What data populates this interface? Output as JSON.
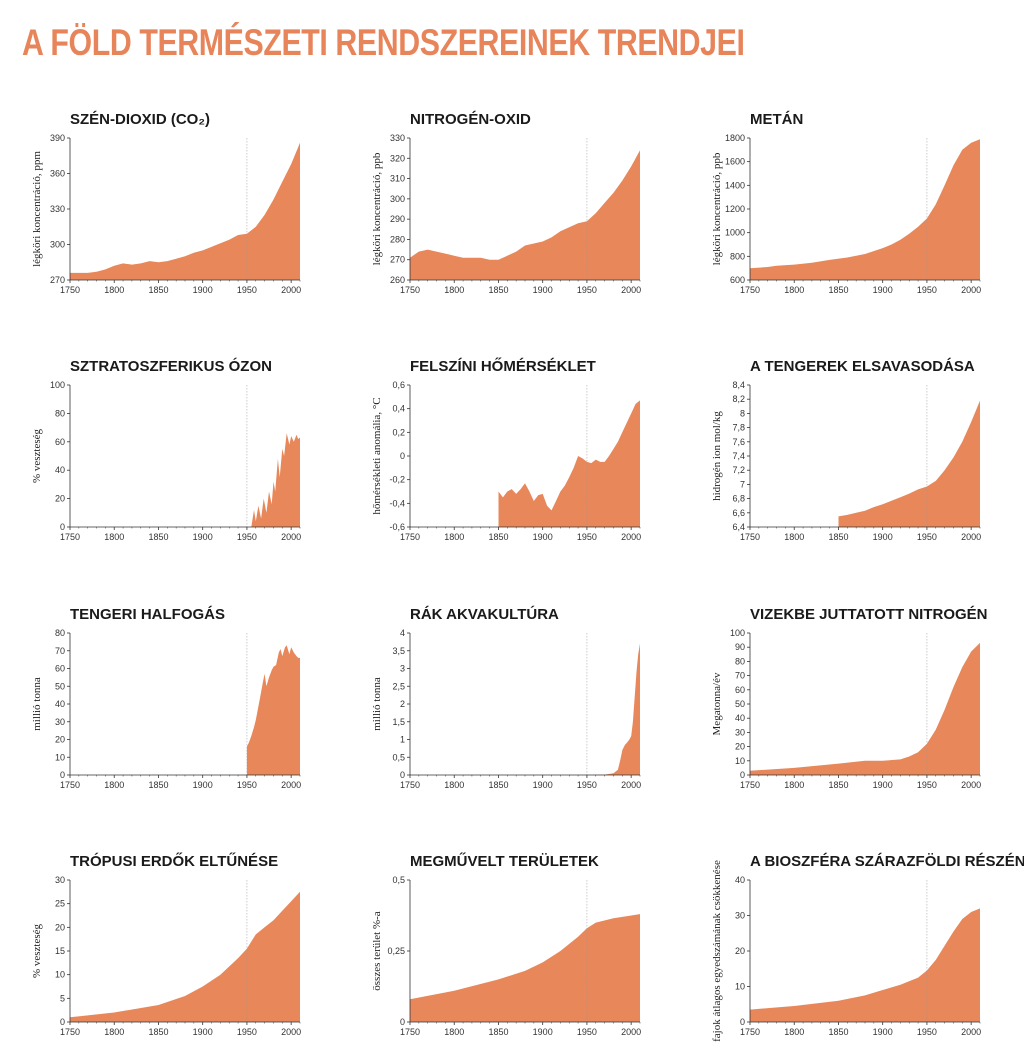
{
  "page": {
    "title": "A FÖLD TERMÉSZETI RENDSZEREINEK TRENDJEI"
  },
  "colors": {
    "accent": "#e8845a",
    "fill": "#e8875a",
    "axis": "#333333"
  },
  "chart_data": [
    {
      "id": "co2",
      "type": "area",
      "title": "SZÉN-DIOXID (CO₂)",
      "ylabel": "légköri koncentráció, ppm",
      "xlim": [
        1750,
        2010
      ],
      "ylim": [
        270,
        390
      ],
      "yticks": [
        270,
        300,
        330,
        360,
        390
      ],
      "ytick_labels": [
        "270",
        "300",
        "330",
        "360",
        "390"
      ],
      "marker_year": 1950,
      "x": [
        1750,
        1770,
        1780,
        1790,
        1800,
        1810,
        1820,
        1830,
        1840,
        1850,
        1860,
        1870,
        1880,
        1890,
        1900,
        1910,
        1920,
        1930,
        1940,
        1950,
        1960,
        1970,
        1980,
        1990,
        2000,
        2010
      ],
      "y": [
        276,
        276,
        277,
        279,
        282,
        284,
        283,
        284,
        286,
        285,
        286,
        288,
        290,
        293,
        295,
        298,
        301,
        304,
        308,
        309,
        315,
        325,
        338,
        353,
        368,
        386
      ]
    },
    {
      "id": "n2o",
      "type": "area",
      "title": "NITROGÉN-OXID",
      "ylabel": "légköri koncentráció, ppb",
      "xlim": [
        1750,
        2010
      ],
      "ylim": [
        260,
        330
      ],
      "yticks": [
        260,
        270,
        280,
        290,
        300,
        310,
        320,
        330
      ],
      "ytick_labels": [
        "260",
        "270",
        "280",
        "290",
        "300",
        "310",
        "320",
        "330"
      ],
      "marker_year": 1950,
      "x": [
        1750,
        1760,
        1770,
        1780,
        1790,
        1800,
        1810,
        1820,
        1830,
        1840,
        1850,
        1860,
        1870,
        1880,
        1890,
        1900,
        1910,
        1920,
        1930,
        1940,
        1950,
        1960,
        1970,
        1980,
        1990,
        2000,
        2010
      ],
      "y": [
        271,
        274,
        275,
        274,
        273,
        272,
        271,
        271,
        271,
        270,
        270,
        272,
        274,
        277,
        278,
        279,
        281,
        284,
        286,
        288,
        289,
        293,
        298,
        303,
        309,
        316,
        324
      ]
    },
    {
      "id": "ch4",
      "type": "area",
      "title": "METÁN",
      "ylabel": "légköri koncentráció, ppb",
      "xlim": [
        1750,
        2010
      ],
      "ylim": [
        600,
        1800
      ],
      "yticks": [
        600,
        800,
        1000,
        1200,
        1400,
        1600,
        1800
      ],
      "ytick_labels": [
        "600",
        "800",
        "1000",
        "1200",
        "1400",
        "1600",
        "1800"
      ],
      "marker_year": 1950,
      "x": [
        1750,
        1770,
        1780,
        1800,
        1820,
        1840,
        1860,
        1880,
        1900,
        1910,
        1920,
        1930,
        1940,
        1950,
        1960,
        1970,
        1980,
        1990,
        2000,
        2010
      ],
      "y": [
        700,
        710,
        720,
        730,
        745,
        770,
        790,
        820,
        870,
        900,
        940,
        990,
        1050,
        1120,
        1240,
        1400,
        1570,
        1700,
        1760,
        1790
      ]
    },
    {
      "id": "ozone",
      "type": "area",
      "title": "SZTRATOSZFERIKUS ÓZON",
      "ylabel": "% veszteség",
      "xlim": [
        1750,
        2010
      ],
      "ylim": [
        0,
        100
      ],
      "yticks": [
        0,
        20,
        40,
        60,
        80,
        100
      ],
      "ytick_labels": [
        "0",
        "20",
        "40",
        "60",
        "80",
        "100"
      ],
      "marker_year": 1950,
      "x": [
        1955,
        1958,
        1960,
        1963,
        1966,
        1969,
        1972,
        1975,
        1978,
        1980,
        1982,
        1985,
        1987,
        1990,
        1992,
        1995,
        1998,
        2000,
        2003,
        2006,
        2008,
        2010
      ],
      "y": [
        0,
        12,
        4,
        15,
        6,
        20,
        10,
        25,
        16,
        32,
        25,
        48,
        35,
        55,
        50,
        66,
        58,
        64,
        60,
        65,
        62,
        63
      ]
    },
    {
      "id": "temp",
      "type": "area",
      "title": "FELSZÍNI HŐMÉRSÉKLET",
      "ylabel": "hőmérsékleti anomália, °C",
      "xlim": [
        1750,
        2010
      ],
      "ylim": [
        -0.6,
        0.6
      ],
      "yticks": [
        -0.6,
        -0.4,
        -0.2,
        0,
        0.2,
        0.4,
        0.6
      ],
      "ytick_labels": [
        "-0,6",
        "-0,4",
        "-0,2",
        "0",
        "0,2",
        "0,4",
        "0,6"
      ],
      "marker_year": 1950,
      "x": [
        1850,
        1855,
        1860,
        1865,
        1870,
        1875,
        1880,
        1885,
        1890,
        1895,
        1900,
        1905,
        1910,
        1915,
        1920,
        1925,
        1930,
        1935,
        1940,
        1945,
        1950,
        1955,
        1960,
        1965,
        1970,
        1975,
        1980,
        1985,
        1990,
        1995,
        2000,
        2005,
        2010
      ],
      "y": [
        -0.3,
        -0.35,
        -0.3,
        -0.28,
        -0.32,
        -0.28,
        -0.23,
        -0.3,
        -0.38,
        -0.33,
        -0.32,
        -0.42,
        -0.46,
        -0.38,
        -0.3,
        -0.25,
        -0.18,
        -0.1,
        0.0,
        -0.02,
        -0.05,
        -0.06,
        -0.03,
        -0.05,
        -0.05,
        0.0,
        0.06,
        0.12,
        0.2,
        0.28,
        0.36,
        0.44,
        0.47
      ]
    },
    {
      "id": "ocean",
      "type": "area",
      "title": "A TENGEREK ELSAVASODÁSA",
      "ylabel": "hidrogén ion mol/kg",
      "xlim": [
        1750,
        2010
      ],
      "ylim": [
        6.4,
        8.4
      ],
      "yticks": [
        6.4,
        6.6,
        6.8,
        7,
        7.2,
        7.4,
        7.6,
        7.8,
        8,
        8.2,
        8.4
      ],
      "ytick_labels": [
        "6,4",
        "6,6",
        "6,8",
        "7",
        "7,2",
        "7,4",
        "7,6",
        "7,8",
        "8",
        "8,2",
        "8,4"
      ],
      "marker_year": 1950,
      "x": [
        1850,
        1860,
        1870,
        1880,
        1890,
        1900,
        1910,
        1920,
        1930,
        1940,
        1950,
        1960,
        1970,
        1980,
        1990,
        2000,
        2010
      ],
      "y": [
        6.55,
        6.57,
        6.6,
        6.63,
        6.68,
        6.72,
        6.77,
        6.82,
        6.87,
        6.93,
        6.97,
        7.05,
        7.2,
        7.38,
        7.6,
        7.88,
        8.18
      ]
    },
    {
      "id": "fish",
      "type": "area",
      "title": "TENGERI HALFOGÁS",
      "ylabel": "millió tonna",
      "xlim": [
        1750,
        2010
      ],
      "ylim": [
        0,
        80
      ],
      "yticks": [
        0,
        10,
        20,
        30,
        40,
        50,
        60,
        70,
        80
      ],
      "ytick_labels": [
        "0",
        "10",
        "20",
        "30",
        "40",
        "50",
        "60",
        "70",
        "80"
      ],
      "marker_year": 1950,
      "x": [
        1950,
        1952,
        1955,
        1958,
        1960,
        1962,
        1965,
        1968,
        1970,
        1972,
        1975,
        1978,
        1980,
        1983,
        1986,
        1988,
        1990,
        1993,
        1995,
        1998,
        2000,
        2003,
        2006,
        2008,
        2010
      ],
      "y": [
        16,
        18,
        22,
        27,
        31,
        36,
        44,
        52,
        57,
        50,
        55,
        59,
        61,
        62,
        69,
        71,
        67,
        72,
        73,
        68,
        72,
        69,
        67,
        66,
        66
      ]
    },
    {
      "id": "shrimp",
      "type": "area",
      "title": "RÁK AKVAKULTÚRA",
      "ylabel": "millió tonna",
      "xlim": [
        1750,
        2010
      ],
      "ylim": [
        0,
        4
      ],
      "yticks": [
        0,
        0.5,
        1,
        1.5,
        2,
        2.5,
        3,
        3.5,
        4
      ],
      "ytick_labels": [
        "0",
        "0,5",
        "1",
        "1,5",
        "2",
        "2,5",
        "3",
        "3,5",
        "4"
      ],
      "marker_year": 1950,
      "x": [
        1950,
        1970,
        1980,
        1985,
        1988,
        1990,
        1993,
        1995,
        1998,
        2000,
        2002,
        2004,
        2006,
        2008,
        2010
      ],
      "y": [
        0.0,
        0.01,
        0.05,
        0.15,
        0.45,
        0.7,
        0.85,
        0.9,
        1.0,
        1.1,
        1.5,
        2.2,
        2.9,
        3.4,
        3.7
      ]
    },
    {
      "id": "nitrogen",
      "type": "area",
      "title": "VIZEKBE JUTTATOTT NITROGÉN",
      "ylabel": "Megatonna/év",
      "xlim": [
        1750,
        2010
      ],
      "ylim": [
        0,
        100
      ],
      "yticks": [
        0,
        10,
        20,
        30,
        40,
        50,
        60,
        70,
        80,
        90,
        100
      ],
      "ytick_labels": [
        "0",
        "10",
        "20",
        "30",
        "40",
        "50",
        "60",
        "70",
        "80",
        "90",
        "100"
      ],
      "marker_year": 1950,
      "x": [
        1750,
        1800,
        1850,
        1880,
        1900,
        1920,
        1930,
        1940,
        1950,
        1960,
        1970,
        1980,
        1990,
        2000,
        2010
      ],
      "y": [
        3,
        5,
        8,
        10,
        10,
        11,
        13,
        16,
        22,
        32,
        46,
        62,
        76,
        87,
        93
      ]
    },
    {
      "id": "forest",
      "type": "area",
      "title": "TRÓPUSI ERDŐK ELTŰNÉSE",
      "ylabel": "% veszteség",
      "xlim": [
        1750,
        2010
      ],
      "ylim": [
        0,
        30
      ],
      "yticks": [
        0,
        5,
        10,
        15,
        20,
        25,
        30
      ],
      "ytick_labels": [
        "0",
        "5",
        "10",
        "15",
        "20",
        "25",
        "30"
      ],
      "marker_year": 1950,
      "x": [
        1750,
        1800,
        1850,
        1880,
        1900,
        1920,
        1940,
        1950,
        1960,
        1970,
        1980,
        1990,
        2000,
        2010
      ],
      "y": [
        1,
        2,
        3.6,
        5.5,
        7.5,
        10,
        13.5,
        15.5,
        18.5,
        20,
        21.5,
        23.5,
        25.5,
        27.5
      ]
    },
    {
      "id": "land",
      "type": "area",
      "title": "MEGMŰVELT TERÜLETEK",
      "ylabel": "összes terület %-a",
      "xlim": [
        1750,
        2010
      ],
      "ylim": [
        0,
        0.5
      ],
      "yticks": [
        0,
        0.25,
        0.5
      ],
      "ytick_labels": [
        "0",
        "0,25",
        "0,5"
      ],
      "marker_year": 1950,
      "x": [
        1750,
        1800,
        1850,
        1880,
        1900,
        1920,
        1940,
        1950,
        1960,
        1980,
        2000,
        2010
      ],
      "y": [
        0.08,
        0.11,
        0.15,
        0.18,
        0.21,
        0.25,
        0.3,
        0.33,
        0.35,
        0.365,
        0.375,
        0.38
      ]
    },
    {
      "id": "biosphere",
      "type": "area",
      "title": "A BIOSZFÉRA SZÁRAZFÖLDI RÉSZÉNEK PUSZTULÁSA",
      "ylabel": "fajok átlagos egyedszámának csökkenése",
      "xlim": [
        1750,
        2010
      ],
      "ylim": [
        0,
        40
      ],
      "yticks": [
        0,
        10,
        20,
        30,
        40
      ],
      "ytick_labels": [
        "0",
        "10",
        "20",
        "30",
        "40"
      ],
      "marker_year": 1950,
      "x": [
        1750,
        1800,
        1850,
        1880,
        1900,
        1920,
        1940,
        1950,
        1960,
        1970,
        1980,
        1990,
        2000,
        2010
      ],
      "y": [
        3.5,
        4.5,
        6,
        7.5,
        9,
        10.5,
        12.5,
        14.5,
        17.5,
        21.5,
        25.5,
        29,
        31,
        32
      ]
    }
  ],
  "x_tick_years": [
    1750,
    1800,
    1850,
    1900,
    1950,
    2000
  ]
}
